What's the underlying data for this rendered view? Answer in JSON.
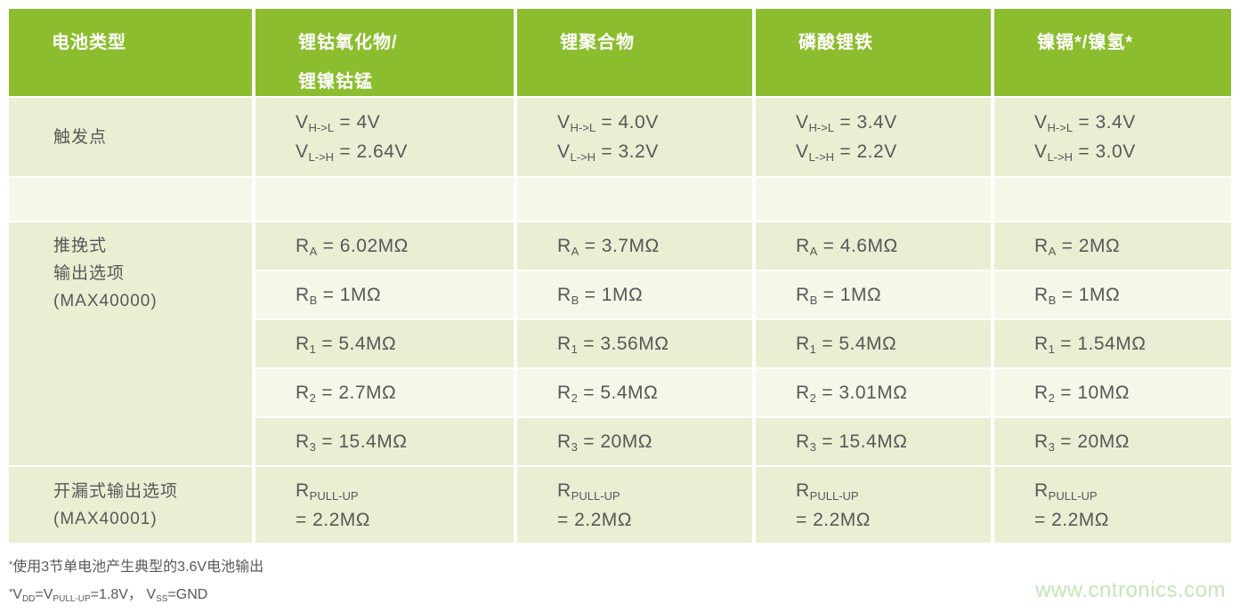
{
  "colors": {
    "header_green": "#8cbd2e",
    "row_shade_dark": "#e9efd2",
    "row_shade_light": "#f5f7e9",
    "text": "#57585a",
    "header_text": "#ffffff",
    "watermark_green": "#c5e6b6"
  },
  "table": {
    "headers": [
      {
        "line1": "电池类型",
        "line2": ""
      },
      {
        "line1": "锂钴氧化物/",
        "line2": "锂镍钴锰"
      },
      {
        "line1": "锂聚合物",
        "line2": ""
      },
      {
        "line1": "磷酸锂铁",
        "line2": ""
      },
      {
        "line1": "镍镉*/镍氢*",
        "line2": ""
      }
    ],
    "trigger": {
      "label": "触发点",
      "sym": "V",
      "cells": [
        {
          "sub1": "H->L",
          "val1": " = 4V",
          "sub2": "L->H",
          "val2": " = 2.64V"
        },
        {
          "sub1": "H->L",
          "val1": " = 4.0V",
          "sub2": "L->H",
          "val2": " = 3.2V"
        },
        {
          "sub1": "H->L",
          "val1": " = 3.4V",
          "sub2": "L->H",
          "val2": " = 2.2V"
        },
        {
          "sub1": "H->L",
          "val1": " = 3.4V",
          "sub2": "L->H",
          "val2": " = 3.0V"
        }
      ]
    },
    "pushpull": {
      "label_lines": [
        "推挽式",
        "输出选项",
        "(MAX40000)"
      ],
      "rows": [
        {
          "sym": "R",
          "sub": "A",
          "vals": [
            " = 6.02MΩ",
            " = 3.7MΩ",
            " = 4.6MΩ",
            " = 2MΩ"
          ]
        },
        {
          "sym": "R",
          "sub": "B",
          "vals": [
            " = 1MΩ",
            " = 1MΩ",
            " = 1MΩ",
            " = 1MΩ"
          ]
        },
        {
          "sym": "R",
          "sub": "1",
          "vals": [
            " = 5.4MΩ",
            " = 3.56MΩ",
            " = 5.4MΩ",
            " = 1.54MΩ"
          ]
        },
        {
          "sym": "R",
          "sub": "2",
          "vals": [
            " = 2.7MΩ",
            " = 5.4MΩ",
            " = 3.01MΩ",
            " = 10MΩ"
          ]
        },
        {
          "sym": "R",
          "sub": "3",
          "vals": [
            " = 15.4MΩ",
            " = 20MΩ",
            " = 15.4MΩ",
            " = 20MΩ"
          ]
        }
      ]
    },
    "opendrain": {
      "label_line1": "开漏式输出选项",
      "label_line2": "(MAX40001)",
      "sym": "R",
      "sub": "PULL-UP",
      "vals": [
        "= 2.2MΩ",
        "= 2.2MΩ",
        "= 2.2MΩ",
        "= 2.2MΩ"
      ]
    }
  },
  "footnotes": {
    "f1": {
      "sup": "*",
      "text": "使用3节单电池产生典型的3.6V电池输出"
    },
    "f2": {
      "sup": "*",
      "s1": "V",
      "sub1": "DD",
      "s2": "=V",
      "sub2": "PULL-UP",
      "s3": "=1.8V， V",
      "sub3": "SS",
      "s4": "=GND"
    }
  },
  "watermark": "www.cntronics.com"
}
